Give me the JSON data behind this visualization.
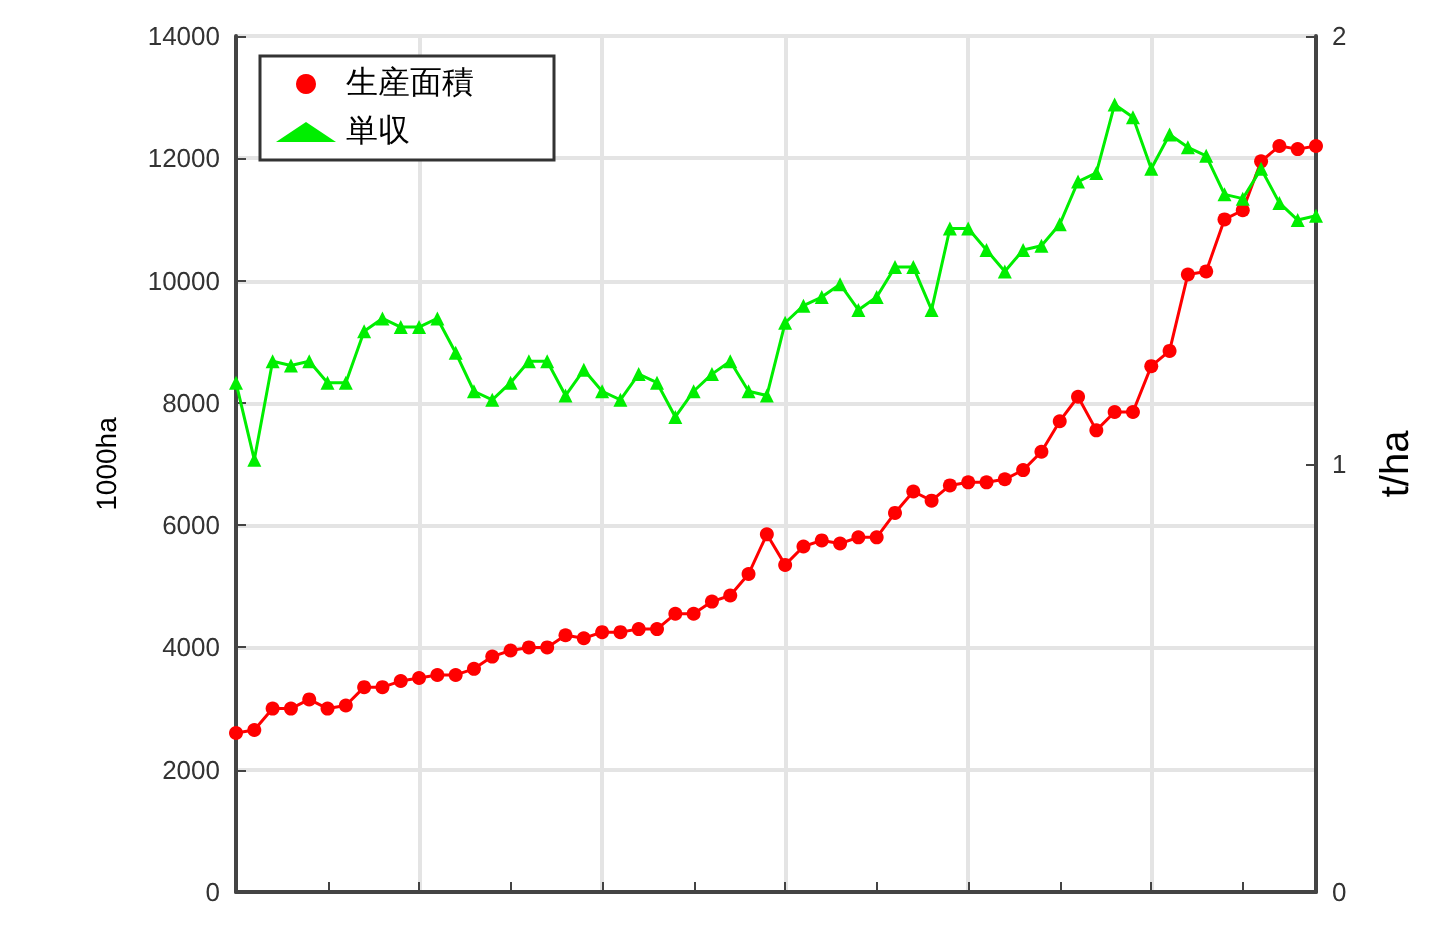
{
  "chart_data": {
    "type": "line",
    "ylabel": "1000ha",
    "y2label": "t/ha",
    "categories": [
      null,
      null,
      null,
      null,
      null,
      null,
      null,
      null,
      null,
      null,
      null,
      null,
      null,
      null,
      null,
      null,
      null,
      null,
      null,
      null,
      null,
      null,
      null,
      null,
      null,
      null,
      null,
      null,
      null,
      null,
      null,
      null,
      null,
      null,
      null,
      null,
      null,
      null,
      null,
      null,
      null,
      null,
      null,
      null,
      null,
      null,
      null,
      null,
      null,
      null,
      null,
      null,
      null,
      null,
      null,
      null,
      null,
      null,
      null,
      null
    ],
    "ylim": [
      0,
      14000
    ],
    "yticks": [
      0,
      2000,
      4000,
      6000,
      8000,
      10000,
      12000,
      14000
    ],
    "y2lim": [
      0,
      2
    ],
    "y2ticks": [
      0,
      1,
      2
    ],
    "grid": true,
    "legend": "top left",
    "series": [
      {
        "name": "生産面積",
        "color": "#ff0000",
        "marker": "circle",
        "values": [
          2600,
          2650,
          3000,
          3000,
          3150,
          3000,
          3050,
          3350,
          3350,
          3450,
          3500,
          3550,
          3550,
          3650,
          3850,
          3950,
          4000,
          4000,
          4200,
          4150,
          4250,
          4250,
          4300,
          4300,
          4550,
          4550,
          4750,
          4850,
          5200,
          5850,
          5350,
          5650,
          5750,
          5700,
          5800,
          5800,
          6200,
          6550,
          6400,
          6650,
          6700,
          6700,
          6750,
          6900,
          7200,
          7700,
          8100,
          7550,
          7850,
          7850,
          8600,
          8850,
          10100,
          10150,
          11000,
          11150,
          11950,
          12200,
          12150,
          12200
        ]
      },
      {
        "name": "単収",
        "color": "#00ee00",
        "marker": "triangle",
        "axis": "y2",
        "values": [
          1.19,
          1.01,
          1.24,
          1.23,
          1.24,
          1.19,
          1.19,
          1.31,
          1.34,
          1.32,
          1.32,
          1.34,
          1.26,
          1.17,
          1.15,
          1.19,
          1.24,
          1.24,
          1.16,
          1.22,
          1.17,
          1.15,
          1.21,
          1.19,
          1.11,
          1.17,
          1.21,
          1.24,
          1.17,
          1.16,
          1.33,
          1.37,
          1.39,
          1.42,
          1.36,
          1.39,
          1.46,
          1.46,
          1.36,
          1.55,
          1.55,
          1.5,
          1.45,
          1.5,
          1.51,
          1.56,
          1.66,
          1.68,
          1.84,
          1.81,
          1.69,
          1.77,
          1.74,
          1.72,
          1.63,
          1.62,
          1.69,
          1.61,
          1.57,
          1.58
        ]
      }
    ]
  }
}
